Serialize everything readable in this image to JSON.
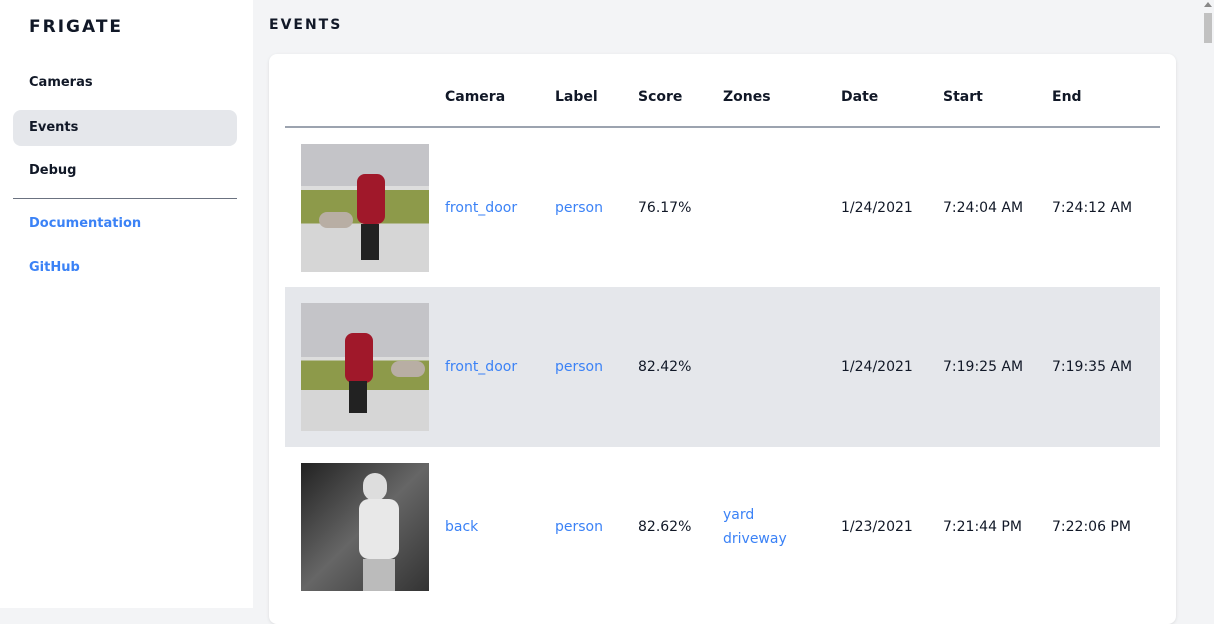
{
  "sidebar": {
    "brand": "FRIGATE",
    "items": [
      {
        "label": "Cameras"
      },
      {
        "label": "Events",
        "active": true
      },
      {
        "label": "Debug"
      }
    ],
    "links": [
      {
        "label": "Documentation"
      },
      {
        "label": "GitHub"
      }
    ]
  },
  "page": {
    "title": "EVENTS"
  },
  "table": {
    "headers": [
      "",
      "Camera",
      "Label",
      "Score",
      "Zones",
      "Date",
      "Start",
      "End"
    ],
    "rows": [
      {
        "camera": "front_door",
        "label": "person",
        "score": "76.17%",
        "zones": [],
        "date": "1/24/2021",
        "start": "7:24:04 AM",
        "end": "7:24:12 AM"
      },
      {
        "camera": "front_door",
        "label": "person",
        "score": "82.42%",
        "zones": [],
        "date": "1/24/2021",
        "start": "7:19:25 AM",
        "end": "7:19:35 AM"
      },
      {
        "camera": "back",
        "label": "person",
        "score": "82.62%",
        "zones": [
          "yard",
          "driveway"
        ],
        "date": "1/23/2021",
        "start": "7:21:44 PM",
        "end": "7:22:06 PM"
      }
    ]
  },
  "colors": {
    "accent": "#3b82f6",
    "active_bg": "#e5e7eb",
    "page_bg": "#f3f4f6"
  }
}
